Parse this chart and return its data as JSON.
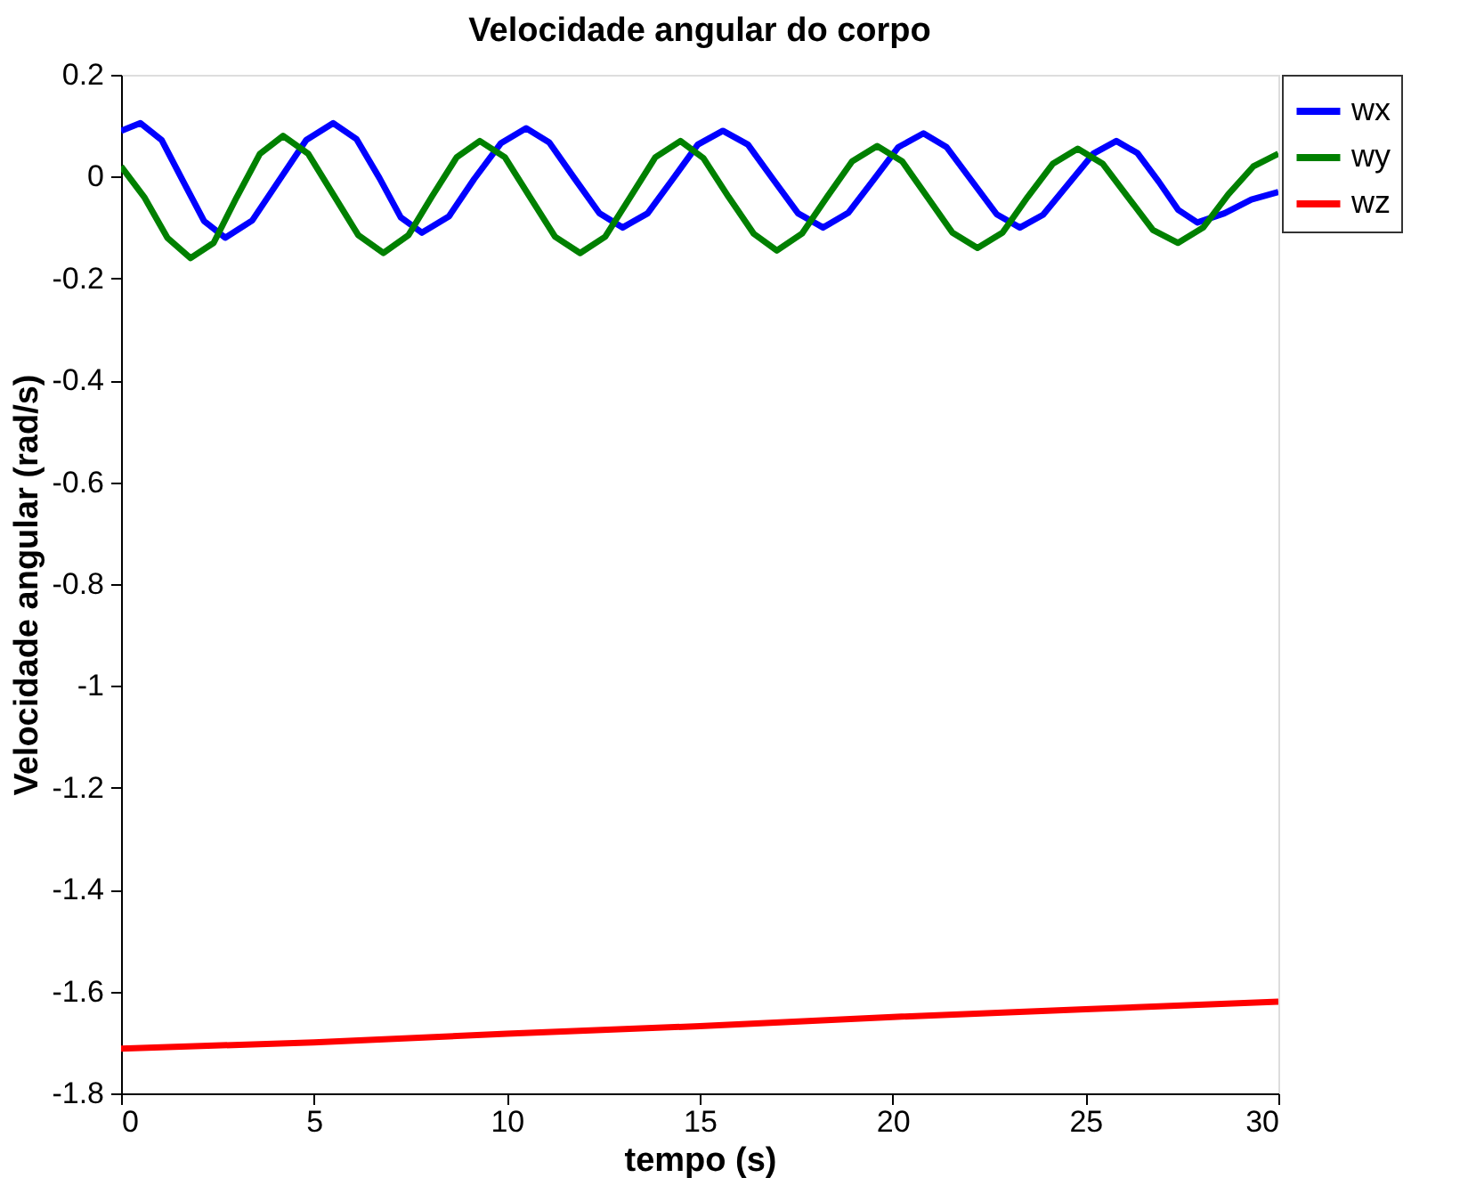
{
  "chart_data": {
    "type": "line",
    "title": "Velocidade angular do corpo",
    "xlabel": "tempo (s)",
    "ylabel": "Velocidade angular (rad/s)",
    "xlim": [
      0,
      30
    ],
    "xticks": [
      0,
      5,
      10,
      15,
      20,
      25,
      30
    ],
    "ylim": [
      -1.8,
      0.2
    ],
    "yticks": [
      -1.8,
      -1.6,
      -1.4,
      -1.2,
      -1,
      -0.8,
      -0.6,
      -0.4,
      -0.2,
      0,
      0.2
    ],
    "grid": false,
    "legend": "top right",
    "line_style": "solid",
    "marker": "none",
    "series": [
      {
        "name": "wx",
        "color": "#0000ff",
        "x": [
          0,
          0.5,
          1.05,
          1.6,
          2.15,
          2.7,
          3.4,
          4.1,
          4.8,
          5.5,
          6.1,
          6.7,
          7.25,
          7.8,
          8.5,
          9.15,
          9.85,
          10.5,
          11.1,
          11.75,
          12.4,
          13.0,
          13.65,
          14.3,
          14.95,
          15.6,
          16.25,
          16.9,
          17.55,
          18.2,
          18.85,
          19.5,
          20.15,
          20.8,
          21.4,
          22.05,
          22.7,
          23.3,
          23.9,
          24.55,
          25.2,
          25.8,
          26.35,
          26.9,
          27.4,
          27.9,
          28.6,
          29.3,
          30
        ],
        "values": [
          0.09,
          0.105,
          0.072,
          -0.008,
          -0.087,
          -0.12,
          -0.086,
          -0.007,
          0.072,
          0.105,
          0.074,
          -0.003,
          -0.08,
          -0.11,
          -0.078,
          -0.005,
          0.066,
          0.095,
          0.067,
          -0.003,
          -0.072,
          -0.1,
          -0.072,
          -0.005,
          0.063,
          0.09,
          0.063,
          -0.005,
          -0.072,
          -0.1,
          -0.071,
          -0.007,
          0.058,
          0.085,
          0.058,
          -0.008,
          -0.074,
          -0.1,
          -0.075,
          -0.015,
          0.045,
          0.07,
          0.046,
          -0.01,
          -0.065,
          -0.09,
          -0.072,
          -0.045,
          -0.03
        ]
      },
      {
        "name": "wy",
        "color": "#008000",
        "x": [
          0,
          0.6,
          1.2,
          1.8,
          2.4,
          3.0,
          3.6,
          4.2,
          4.85,
          5.5,
          6.15,
          6.8,
          7.45,
          8.05,
          8.7,
          9.3,
          9.95,
          10.6,
          11.25,
          11.9,
          12.55,
          13.2,
          13.85,
          14.5,
          15.1,
          15.75,
          16.4,
          17.0,
          17.65,
          18.3,
          18.95,
          19.6,
          20.25,
          20.9,
          21.55,
          22.2,
          22.85,
          23.5,
          24.15,
          24.8,
          25.45,
          26.1,
          26.75,
          27.4,
          28.05,
          28.7,
          29.35,
          30
        ],
        "values": [
          0.02,
          -0.04,
          -0.12,
          -0.16,
          -0.13,
          -0.04,
          0.045,
          0.08,
          0.045,
          -0.035,
          -0.115,
          -0.15,
          -0.115,
          -0.04,
          0.038,
          0.07,
          0.038,
          -0.04,
          -0.118,
          -0.15,
          -0.118,
          -0.04,
          0.038,
          0.07,
          0.036,
          -0.04,
          -0.112,
          -0.145,
          -0.112,
          -0.04,
          0.03,
          0.06,
          0.03,
          -0.04,
          -0.11,
          -0.14,
          -0.11,
          -0.04,
          0.025,
          0.055,
          0.025,
          -0.04,
          -0.105,
          -0.13,
          -0.1,
          -0.035,
          0.02,
          0.045
        ]
      },
      {
        "name": "wz",
        "color": "#ff0000",
        "x": [
          0,
          5,
          10,
          15,
          20,
          25,
          30
        ],
        "values": [
          -1.712,
          -1.7,
          -1.683,
          -1.668,
          -1.65,
          -1.635,
          -1.62
        ]
      }
    ]
  }
}
